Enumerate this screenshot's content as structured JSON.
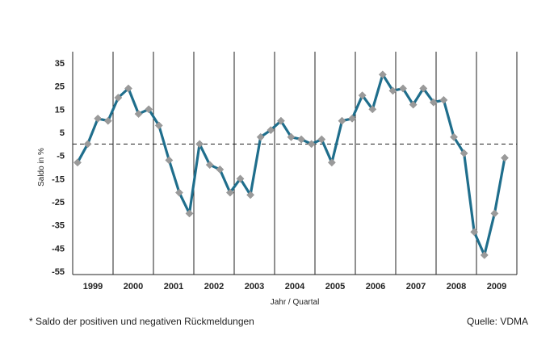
{
  "chart_data": {
    "type": "line",
    "title": "",
    "xlabel": "Jahr / Quartal",
    "ylabel": "Saldo in %",
    "ylim": [
      -55,
      35
    ],
    "yticks": [
      35,
      25,
      15,
      5,
      -5,
      -15,
      -25,
      -35,
      -45,
      -55
    ],
    "years": [
      "1999",
      "2000",
      "2001",
      "2002",
      "2003",
      "2004",
      "2005",
      "2006",
      "2007",
      "2008",
      "2009"
    ],
    "reference_line": 0,
    "grid": "vertical year separators",
    "series": [
      {
        "values": [
          -8,
          0,
          11,
          10,
          20,
          24,
          13,
          15,
          8,
          -7,
          -21,
          -30,
          0,
          -9,
          -11,
          -21,
          -15,
          -22,
          3,
          6,
          10,
          3,
          2,
          0,
          2,
          -8,
          10,
          11,
          21,
          15,
          30,
          23,
          24,
          17,
          24,
          18,
          19,
          3,
          -4,
          -38,
          -48,
          -30,
          -6
        ],
        "color": "#1f6e8c",
        "marker_color": "#9a9a9a"
      }
    ]
  },
  "footnote": "* Saldo der positiven und negativen Rückmeldungen",
  "source": "Quelle: VDMA"
}
